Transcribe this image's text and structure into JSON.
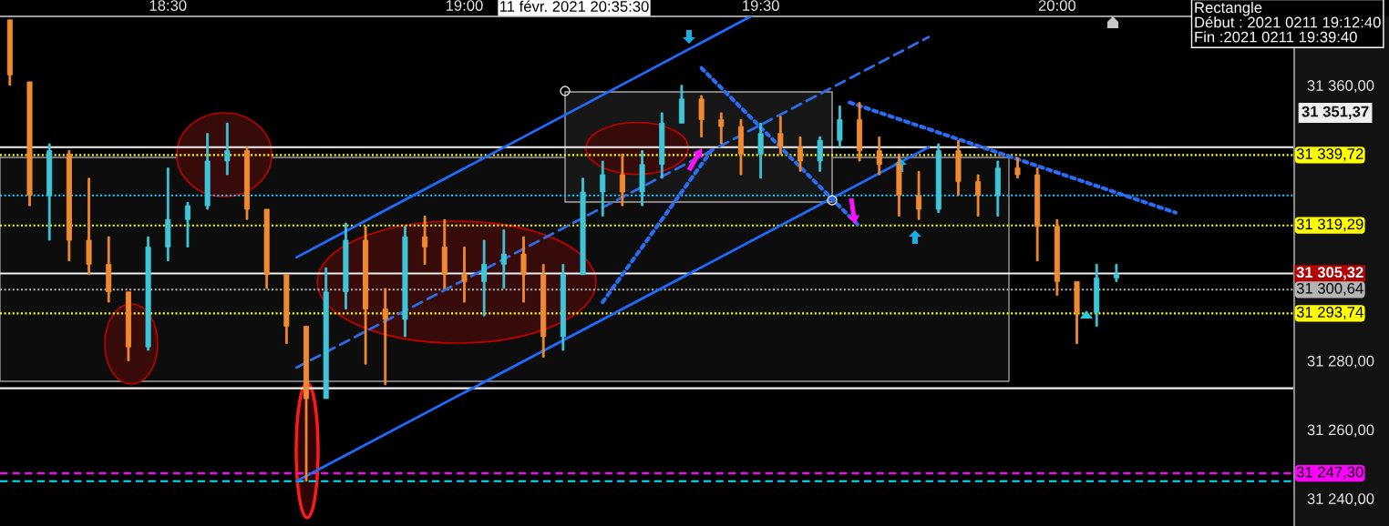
{
  "chart_data": {
    "type": "candlestick",
    "x": [
      "2021-02-11T18:14",
      "2021-02-11T18:16",
      "2021-02-11T18:18",
      "2021-02-11T18:20",
      "2021-02-11T18:22",
      "2021-02-11T18:24",
      "2021-02-11T18:26",
      "2021-02-11T18:28",
      "2021-02-11T18:30",
      "2021-02-11T18:32",
      "2021-02-11T18:34",
      "2021-02-11T18:36",
      "2021-02-11T18:38",
      "2021-02-11T18:40",
      "2021-02-11T18:42",
      "2021-02-11T18:44",
      "2021-02-11T18:46",
      "2021-02-11T18:48",
      "2021-02-11T18:50",
      "2021-02-11T18:52",
      "2021-02-11T18:54",
      "2021-02-11T18:56",
      "2021-02-11T18:58",
      "2021-02-11T19:00",
      "2021-02-11T19:02",
      "2021-02-11T19:04",
      "2021-02-11T19:06",
      "2021-02-11T19:08",
      "2021-02-11T19:10",
      "2021-02-11T19:12",
      "2021-02-11T19:14",
      "2021-02-11T19:16",
      "2021-02-11T19:18",
      "2021-02-11T19:20",
      "2021-02-11T19:22",
      "2021-02-11T19:24",
      "2021-02-11T19:26",
      "2021-02-11T19:28",
      "2021-02-11T19:30",
      "2021-02-11T19:32",
      "2021-02-11T19:34",
      "2021-02-11T19:36",
      "2021-02-11T19:38",
      "2021-02-11T19:40",
      "2021-02-11T19:42",
      "2021-02-11T19:44",
      "2021-02-11T19:46",
      "2021-02-11T19:48",
      "2021-02-11T19:50",
      "2021-02-11T19:52",
      "2021-02-11T19:54",
      "2021-02-11T19:56",
      "2021-02-11T19:58",
      "2021-02-11T20:00",
      "2021-02-11T20:02",
      "2021-02-11T20:04",
      "2021-02-11T20:06"
    ],
    "ohlc": [
      [
        31379,
        31379,
        31360,
        31363
      ],
      [
        31361,
        31361,
        31325,
        31328
      ],
      [
        31328,
        31343,
        31315,
        31341
      ],
      [
        31340,
        31341,
        31309,
        31315
      ],
      [
        31315,
        31333,
        31305,
        31308
      ],
      [
        31308,
        31316,
        31297,
        31300
      ],
      [
        31300,
        31300,
        31280,
        31284
      ],
      [
        31284,
        31316,
        31283,
        31313
      ],
      [
        31313,
        31336,
        31309,
        31321
      ],
      [
        31321,
        31326,
        31313,
        31325
      ],
      [
        31325,
        31346,
        31324,
        31338
      ],
      [
        31338,
        31349,
        31334,
        31341
      ],
      [
        31341,
        31342,
        31321,
        31324
      ],
      [
        31324,
        31324,
        31301,
        31305
      ],
      [
        31305,
        31305,
        31285,
        31290
      ],
      [
        31290,
        31290,
        31245,
        31269
      ],
      [
        31269,
        31307,
        31269,
        31300
      ],
      [
        31300,
        31320,
        31295,
        31315
      ],
      [
        31315,
        31319,
        31279,
        31295
      ],
      [
        31295,
        31301,
        31273,
        31292
      ],
      [
        31292,
        31319,
        31287,
        31316
      ],
      [
        31316,
        31322,
        31308,
        31313
      ],
      [
        31313,
        31321,
        31301,
        31305
      ],
      [
        31305,
        31313,
        31297,
        31303
      ],
      [
        31303,
        31315,
        31293,
        31308
      ],
      [
        31308,
        31318,
        31301,
        31311
      ],
      [
        31311,
        31316,
        31297,
        31305
      ],
      [
        31305,
        31308,
        31281,
        31287
      ],
      [
        31287,
        31308,
        31283,
        31305
      ],
      [
        31305,
        31333,
        31305,
        31329
      ],
      [
        31329,
        31338,
        31322,
        31334
      ],
      [
        31334,
        31340,
        31325,
        31329
      ],
      [
        31329,
        31341,
        31325,
        31337
      ],
      [
        31337,
        31352,
        31333,
        31349
      ],
      [
        31349,
        31360,
        31349,
        31356
      ],
      [
        31356,
        31357,
        31345,
        31350
      ],
      [
        31350,
        31352,
        31343,
        31348
      ],
      [
        31348,
        31350,
        31334,
        31340
      ],
      [
        31340,
        31349,
        31333,
        31346
      ],
      [
        31346,
        31351,
        31340,
        31342
      ],
      [
        31342,
        31345,
        31335,
        31338
      ],
      [
        31338,
        31345,
        31335,
        31344
      ],
      [
        31344,
        31354,
        31342,
        31350
      ],
      [
        31350,
        31355,
        31338,
        31341
      ],
      [
        31341,
        31345,
        31334,
        31337
      ],
      [
        31337,
        31340,
        31322,
        31328
      ],
      [
        31328,
        31335,
        31321,
        31324
      ],
      [
        31324,
        31343,
        31323,
        31341
      ],
      [
        31341,
        31344,
        31328,
        31332
      ],
      [
        31332,
        31334,
        31322,
        31328
      ],
      [
        31328,
        31338,
        31322,
        31336
      ],
      [
        31336,
        31339,
        31333,
        31334
      ],
      [
        31334,
        31336,
        31309,
        31319
      ],
      [
        31319,
        31321,
        31299,
        31303
      ],
      [
        31303,
        31303,
        31285,
        31294
      ],
      [
        31294,
        31308,
        31290,
        31304
      ],
      [
        31304,
        31308,
        31303,
        31305
      ]
    ],
    "colors": [
      "#f08a30",
      "#f08a30",
      "#3ec6d8",
      "#f08a30",
      "#f08a30",
      "#f08a30",
      "#f08a30",
      "#3ec6d8",
      "#3ec6d8",
      "#3ec6d8",
      "#3ec6d8",
      "#3ec6d8",
      "#f08a30",
      "#f08a30",
      "#f08a30",
      "#f08a30",
      "#3ec6d8",
      "#3ec6d8",
      "#f08a30",
      "#f08a30",
      "#3ec6d8",
      "#f08a30",
      "#f08a30",
      "#f08a30",
      "#3ec6d8",
      "#3ec6d8",
      "#f08a30",
      "#f08a30",
      "#3ec6d8",
      "#3ec6d8",
      "#3ec6d8",
      "#f08a30",
      "#3ec6d8",
      "#3ec6d8",
      "#3ec6d8",
      "#f08a30",
      "#f08a30",
      "#f08a30",
      "#3ec6d8",
      "#f08a30",
      "#f08a30",
      "#3ec6d8",
      "#3ec6d8",
      "#f08a30",
      "#f08a30",
      "#f08a30",
      "#f08a30",
      "#3ec6d8",
      "#f08a30",
      "#f08a30",
      "#3ec6d8",
      "#f08a30",
      "#f08a30",
      "#f08a30",
      "#f08a30",
      "#3ec6d8",
      "#3ec6d8"
    ],
    "series": [
      {
        "type": "line",
        "x": [
          "2021-02-11T18:43",
          "2021-02-11T19:29"
        ],
        "values": [
          31310,
          31380
        ],
        "color": "#1f6bff",
        "line_style": "solid"
      },
      {
        "type": "line",
        "x": [
          "2021-02-11T18:43",
          "2021-02-11T19:47"
        ],
        "values": [
          31245,
          31342
        ],
        "color": "#1f6bff",
        "line_style": "solid"
      },
      {
        "type": "line",
        "x": [
          "2021-02-11T18:43",
          "2021-02-11T19:47"
        ],
        "values": [
          31278,
          31374
        ],
        "color": "#2f6ae8",
        "line_style": "dashed"
      },
      {
        "type": "line",
        "x": [
          "2021-02-11T19:14",
          "2021-02-11T19:25"
        ],
        "values": [
          31297,
          31341
        ],
        "color": "#2a6df5",
        "line_style": "dotted"
      },
      {
        "type": "line",
        "x": [
          "2021-02-11T19:24",
          "2021-02-11T19:40"
        ],
        "values": [
          31365,
          31319
        ],
        "color": "#2a6df5",
        "line_style": "dotted"
      },
      {
        "type": "line",
        "x": [
          "2021-02-11T19:39",
          "2021-02-11T20:12"
        ],
        "values": [
          31355,
          31323
        ],
        "color": "#2a6df5",
        "line_style": "dotted"
      }
    ],
    "ref_lines": [
      {
        "axis": "y",
        "value": 31342,
        "color": "#f2f2f2",
        "line_style": "solid"
      },
      {
        "axis": "y",
        "value": 31339.72,
        "label": "31 339,72",
        "color": "#ffff00",
        "line_style": "dotted"
      },
      {
        "axis": "y",
        "value": 31328,
        "color": "#1ec8ff",
        "line_style": "dotted"
      },
      {
        "axis": "y",
        "value": 31319.29,
        "label": "31 319,29",
        "color": "#ffff00",
        "line_style": "dotted"
      },
      {
        "axis": "y",
        "value": 31305.32,
        "label": "31 305,32",
        "color": "#f2f2f2",
        "line_style": "solid"
      },
      {
        "axis": "y",
        "value": 31300.64,
        "label": "31 300,64",
        "color": "#b4b4b4",
        "line_style": "dotted"
      },
      {
        "axis": "y",
        "value": 31293.74,
        "label": "31 293,74",
        "color": "#ffff00",
        "line_style": "dotted"
      },
      {
        "axis": "y",
        "value": 31272,
        "color": "#f2f2f2",
        "line_style": "solid"
      },
      {
        "axis": "y",
        "value": 31247.3,
        "label": "31 247,30",
        "color": "#ff00ff",
        "line_style": "dashed"
      },
      {
        "axis": "y",
        "value": 31245,
        "color": "#00e5ff",
        "line_style": "dashed"
      }
    ],
    "annotations": [
      "11 févr. 2021 20:35:30",
      "Rectangle\nDébut : 2021 0211 19:12:40\nFin :2021 0211 19:39:40",
      "31 351,37"
    ],
    "xlim": [
      "2021-02-11T18:13",
      "2021-02-11T20:24"
    ],
    "xticks": [
      {
        "value": "2021-02-11T18:30",
        "label": "18:30"
      },
      {
        "value": "2021-02-11T19:00",
        "label": "19:00"
      },
      {
        "value": "2021-02-11T19:30",
        "label": "19:30"
      },
      {
        "value": "2021-02-11T20:00",
        "label": "20:00"
      }
    ],
    "ylim": [
      31232,
      31380
    ],
    "yticks": [
      {
        "value": 31240,
        "label": "31 240,00"
      },
      {
        "value": 31260,
        "label": "31 260,00"
      },
      {
        "value": 31280,
        "label": "31 280,00"
      },
      {
        "value": 31360,
        "label": "31 360,00"
      }
    ]
  }
}
